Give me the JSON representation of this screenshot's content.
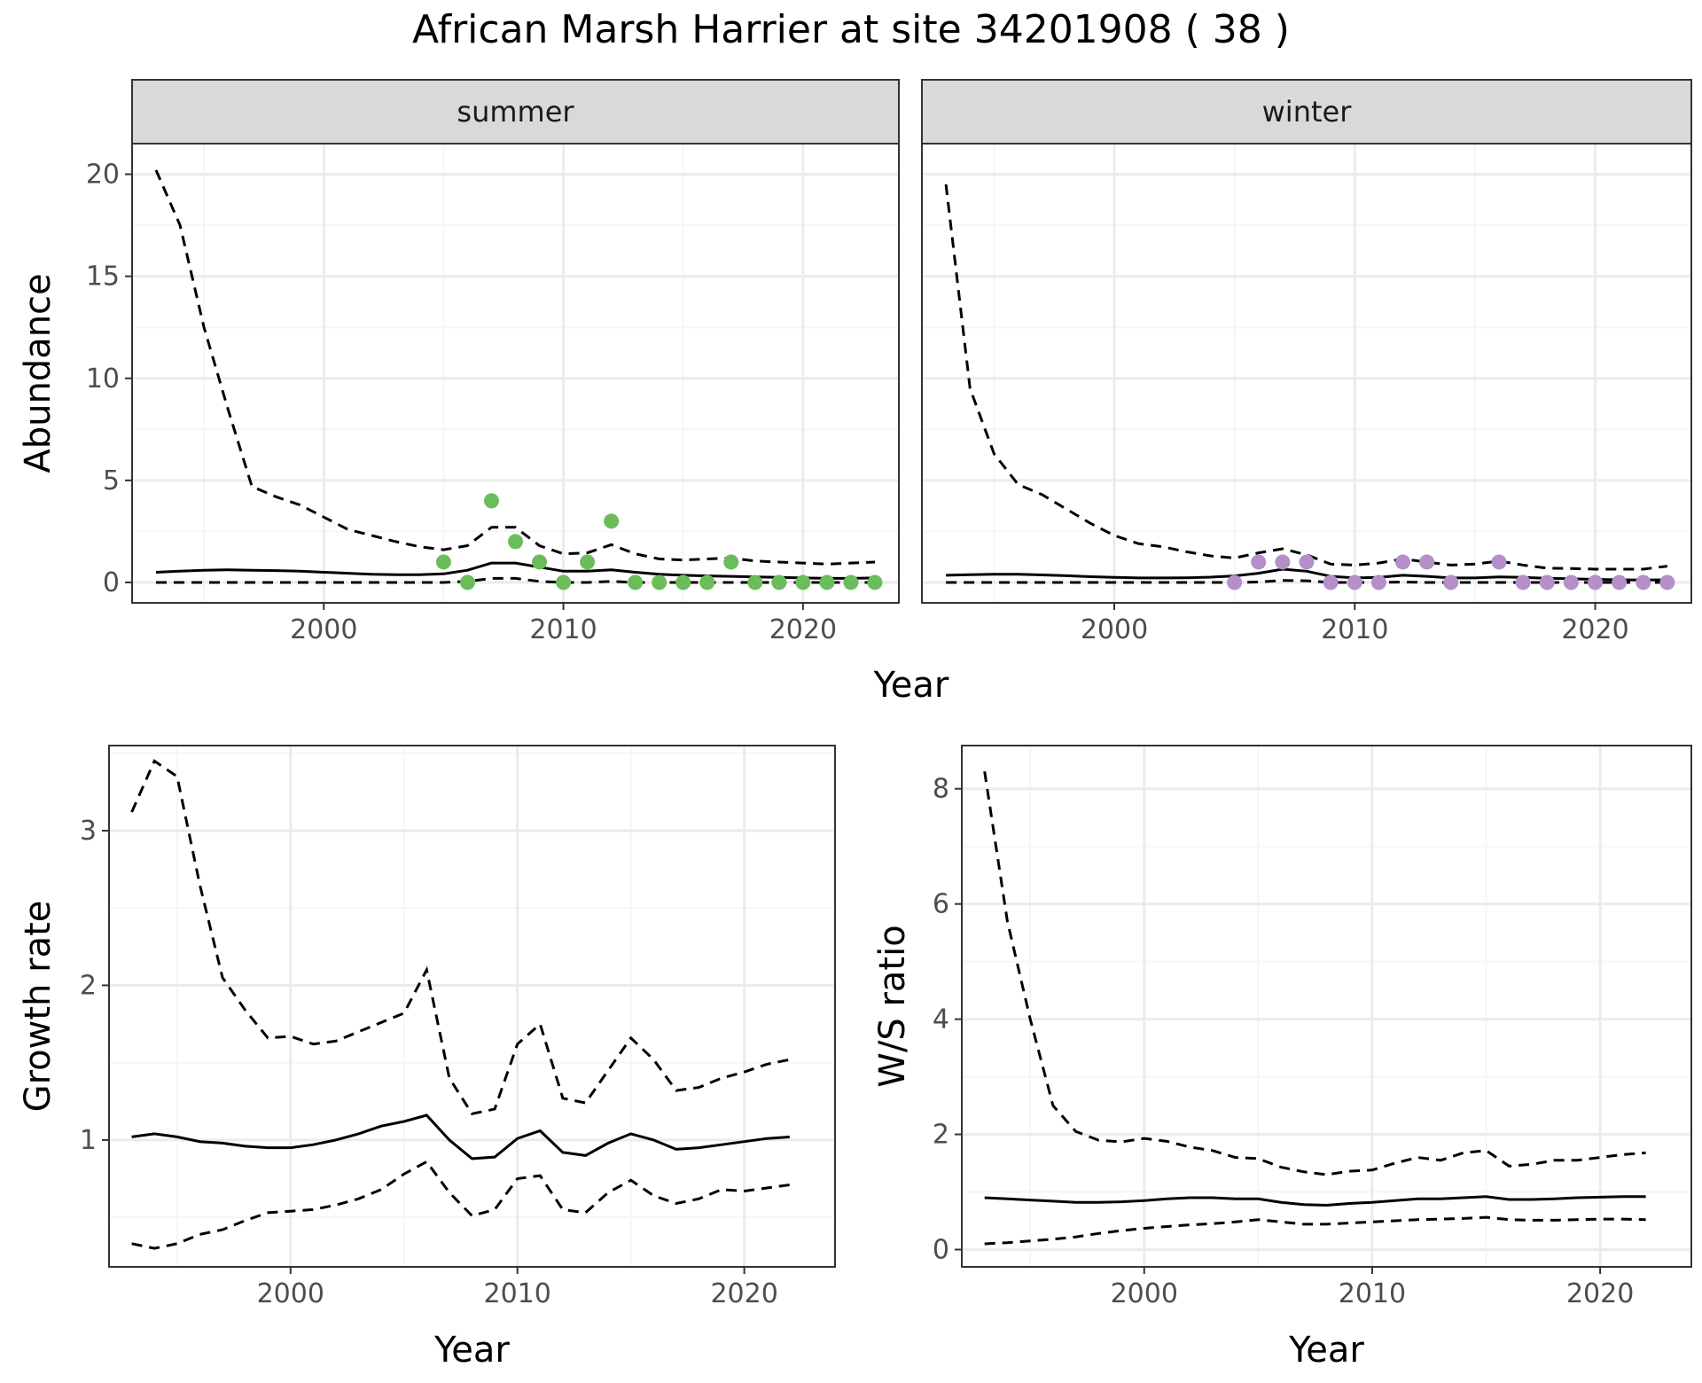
{
  "title": "African Marsh Harrier at site 34201908 ( 38 )",
  "colors": {
    "summer_points": "#6abd5a",
    "winter_points": "#b48fc8",
    "line": "#000000",
    "grid_major": "#ebebeb",
    "grid_minor": "#f5f5f5",
    "strip_fill": "#d9d9d9",
    "panel_border": "#333333"
  },
  "chart_data": [
    {
      "type": "line",
      "panel": "abundance",
      "xlabel": "Year",
      "ylabel": "Abundance",
      "xlim": [
        1992,
        2024
      ],
      "ylim": [
        -1,
        21.5
      ],
      "xticks": [
        2000,
        2010,
        2020
      ],
      "yticks": [
        0,
        5,
        10,
        15,
        20
      ],
      "grid": true,
      "facets": [
        {
          "label": "summer",
          "point_color_key": "summer_points",
          "x": [
            1993,
            1994,
            1995,
            1996,
            1997,
            1998,
            1999,
            2000,
            2001,
            2002,
            2003,
            2004,
            2005,
            2006,
            2007,
            2008,
            2009,
            2010,
            2011,
            2012,
            2013,
            2014,
            2015,
            2016,
            2017,
            2018,
            2019,
            2020,
            2021,
            2022,
            2023
          ],
          "mean": [
            0.5,
            0.55,
            0.6,
            0.62,
            0.6,
            0.58,
            0.55,
            0.5,
            0.45,
            0.4,
            0.38,
            0.38,
            0.42,
            0.6,
            0.95,
            0.95,
            0.75,
            0.55,
            0.55,
            0.62,
            0.5,
            0.4,
            0.35,
            0.32,
            0.3,
            0.27,
            0.25,
            0.22,
            0.2,
            0.2,
            0.22
          ],
          "upper": [
            20.2,
            17.5,
            12.5,
            8.5,
            4.7,
            4.2,
            3.8,
            3.2,
            2.6,
            2.3,
            2.0,
            1.75,
            1.6,
            1.8,
            2.7,
            2.7,
            1.8,
            1.4,
            1.45,
            1.85,
            1.4,
            1.15,
            1.1,
            1.15,
            1.2,
            1.05,
            1.0,
            0.95,
            0.9,
            0.95,
            1.0
          ],
          "lower": [
            0,
            0,
            0,
            0,
            0,
            0,
            0,
            0,
            0,
            0,
            0,
            0,
            0,
            0.05,
            0.2,
            0.2,
            0.05,
            0,
            0,
            0.05,
            0,
            0,
            0,
            0,
            0,
            0,
            0,
            0,
            0,
            0,
            0
          ],
          "obs_x": [
            2005,
            2006,
            2007,
            2008,
            2009,
            2010,
            2011,
            2012,
            2013,
            2014,
            2015,
            2016,
            2017,
            2018,
            2019,
            2020,
            2021,
            2022,
            2023
          ],
          "obs_y": [
            1,
            0,
            4,
            2,
            1,
            0,
            1,
            3,
            0,
            0,
            0,
            0,
            1,
            0,
            0,
            0,
            0,
            0,
            0
          ]
        },
        {
          "label": "winter",
          "point_color_key": "winter_points",
          "x": [
            1993,
            1994,
            1995,
            1996,
            1997,
            1998,
            1999,
            2000,
            2001,
            2002,
            2003,
            2004,
            2005,
            2006,
            2007,
            2008,
            2009,
            2010,
            2011,
            2012,
            2013,
            2014,
            2015,
            2016,
            2017,
            2018,
            2019,
            2020,
            2021,
            2022,
            2023
          ],
          "mean": [
            0.35,
            0.38,
            0.4,
            0.4,
            0.37,
            0.33,
            0.28,
            0.25,
            0.22,
            0.22,
            0.23,
            0.26,
            0.32,
            0.45,
            0.65,
            0.55,
            0.3,
            0.22,
            0.25,
            0.35,
            0.3,
            0.22,
            0.22,
            0.27,
            0.25,
            0.2,
            0.18,
            0.15,
            0.13,
            0.12,
            0.13
          ],
          "upper": [
            19.5,
            9.5,
            6.3,
            4.8,
            4.3,
            3.6,
            2.9,
            2.3,
            1.9,
            1.75,
            1.5,
            1.3,
            1.2,
            1.45,
            1.65,
            1.35,
            0.9,
            0.85,
            0.95,
            1.15,
            1.0,
            0.85,
            0.9,
            1.05,
            0.85,
            0.7,
            0.68,
            0.65,
            0.65,
            0.65,
            0.8
          ],
          "lower": [
            0,
            0,
            0,
            0,
            0,
            0,
            0,
            0,
            0,
            0,
            0,
            0,
            0,
            0.02,
            0.1,
            0.08,
            0,
            0,
            0,
            0.02,
            0,
            0,
            0,
            0,
            0,
            0,
            0,
            0,
            0,
            0,
            0
          ],
          "obs_x": [
            2005,
            2006,
            2007,
            2008,
            2009,
            2010,
            2011,
            2012,
            2013,
            2014,
            2016,
            2017,
            2018,
            2019,
            2020,
            2021,
            2022,
            2023
          ],
          "obs_y": [
            0,
            1,
            1,
            1,
            0,
            0,
            0,
            1,
            1,
            0,
            1,
            0,
            0,
            0,
            0,
            0,
            0,
            0
          ]
        }
      ]
    },
    {
      "type": "line",
      "panel": "growth",
      "xlabel": "Year",
      "ylabel": "Growth rate",
      "xlim": [
        1992,
        2024
      ],
      "ylim": [
        0.18,
        3.55
      ],
      "xticks": [
        2000,
        2010,
        2020
      ],
      "yticks": [
        1,
        2,
        3
      ],
      "grid": true,
      "x": [
        1993,
        1994,
        1995,
        1996,
        1997,
        1998,
        1999,
        2000,
        2001,
        2002,
        2003,
        2004,
        2005,
        2006,
        2007,
        2008,
        2009,
        2010,
        2011,
        2012,
        2013,
        2014,
        2015,
        2016,
        2017,
        2018,
        2019,
        2020,
        2021,
        2022
      ],
      "mean": [
        1.02,
        1.04,
        1.02,
        0.99,
        0.98,
        0.96,
        0.95,
        0.95,
        0.97,
        1.0,
        1.04,
        1.09,
        1.12,
        1.16,
        1.0,
        0.88,
        0.89,
        1.01,
        1.06,
        0.92,
        0.9,
        0.98,
        1.04,
        1.0,
        0.94,
        0.95,
        0.97,
        0.99,
        1.01,
        1.02
      ],
      "upper": [
        3.12,
        3.45,
        3.35,
        2.65,
        2.05,
        1.84,
        1.66,
        1.67,
        1.62,
        1.64,
        1.7,
        1.76,
        1.82,
        2.1,
        1.4,
        1.17,
        1.2,
        1.62,
        1.75,
        1.27,
        1.24,
        1.45,
        1.66,
        1.52,
        1.32,
        1.34,
        1.4,
        1.44,
        1.49,
        1.52
      ],
      "lower": [
        0.33,
        0.3,
        0.33,
        0.39,
        0.42,
        0.48,
        0.53,
        0.54,
        0.55,
        0.58,
        0.62,
        0.68,
        0.78,
        0.86,
        0.66,
        0.51,
        0.55,
        0.75,
        0.77,
        0.55,
        0.53,
        0.66,
        0.74,
        0.64,
        0.59,
        0.62,
        0.68,
        0.67,
        0.69,
        0.71
      ]
    },
    {
      "type": "line",
      "panel": "ratio",
      "xlabel": "Year",
      "ylabel": "W/S ratio",
      "xlim": [
        1992,
        2024
      ],
      "ylim": [
        -0.3,
        8.75
      ],
      "xticks": [
        2000,
        2010,
        2020
      ],
      "yticks": [
        0,
        2,
        4,
        6,
        8
      ],
      "grid": true,
      "x": [
        1993,
        1994,
        1995,
        1996,
        1997,
        1998,
        1999,
        2000,
        2001,
        2002,
        2003,
        2004,
        2005,
        2006,
        2007,
        2008,
        2009,
        2010,
        2011,
        2012,
        2013,
        2014,
        2015,
        2016,
        2017,
        2018,
        2019,
        2020,
        2021,
        2022
      ],
      "mean": [
        0.9,
        0.88,
        0.86,
        0.84,
        0.82,
        0.82,
        0.83,
        0.85,
        0.88,
        0.9,
        0.9,
        0.88,
        0.88,
        0.82,
        0.78,
        0.77,
        0.8,
        0.82,
        0.85,
        0.88,
        0.88,
        0.9,
        0.92,
        0.87,
        0.87,
        0.88,
        0.9,
        0.91,
        0.92,
        0.92
      ],
      "upper": [
        8.3,
        5.7,
        4.0,
        2.5,
        2.05,
        1.9,
        1.87,
        1.93,
        1.88,
        1.78,
        1.72,
        1.6,
        1.58,
        1.43,
        1.35,
        1.3,
        1.36,
        1.38,
        1.5,
        1.6,
        1.55,
        1.68,
        1.72,
        1.45,
        1.48,
        1.55,
        1.55,
        1.6,
        1.65,
        1.68
      ],
      "lower": [
        0.1,
        0.12,
        0.15,
        0.18,
        0.22,
        0.28,
        0.33,
        0.37,
        0.4,
        0.43,
        0.45,
        0.48,
        0.52,
        0.48,
        0.44,
        0.44,
        0.46,
        0.48,
        0.5,
        0.52,
        0.53,
        0.54,
        0.56,
        0.52,
        0.51,
        0.51,
        0.52,
        0.53,
        0.53,
        0.52
      ]
    }
  ]
}
